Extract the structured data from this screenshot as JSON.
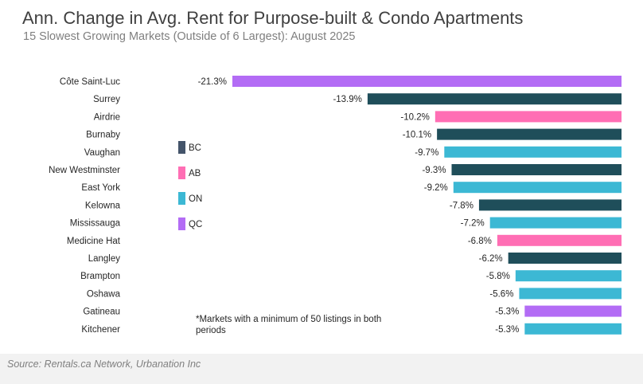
{
  "header": {
    "title": "Ann. Change in Avg. Rent for Purpose-built & Condo Apartments",
    "subtitle": "15 Slowest Growing Markets (Outside of 6 Largest): August 2025"
  },
  "footnote": "*Markets with a minimum of 50 listings in both periods",
  "source": "Source: Rentals.ca Network, Urbanation Inc",
  "colors": {
    "BC": "#1f4e5a",
    "AB": "#ff6eb4",
    "ON": "#3cb8d4",
    "QC": "#b36cf5",
    "legend_BC": "#44546a"
  },
  "chart_data": {
    "type": "bar",
    "orientation": "horizontal",
    "title": "Ann. Change in Avg. Rent for Purpose-built & Condo Apartments",
    "subtitle": "15 Slowest Growing Markets (Outside of 6 Largest): August 2025",
    "categories": [
      "Côte Saint-Luc",
      "Surrey",
      "Airdrie",
      "Burnaby",
      "Vaughan",
      "New Westminster",
      "East York",
      "Kelowna",
      "Mississauga",
      "Medicine Hat",
      "Langley",
      "Brampton",
      "Oshawa",
      "Gatineau",
      "Kitchener"
    ],
    "values": [
      -21.3,
      -13.9,
      -10.2,
      -10.1,
      -9.7,
      -9.3,
      -9.2,
      -7.8,
      -7.2,
      -6.8,
      -6.2,
      -5.8,
      -5.6,
      -5.3,
      -5.3
    ],
    "value_labels": [
      "-21.3%",
      "-13.9%",
      "-10.2%",
      "-10.1%",
      "-9.7%",
      "-9.3%",
      "-9.2%",
      "-7.8%",
      "-7.2%",
      "-6.8%",
      "-6.2%",
      "-5.8%",
      "-5.6%",
      "-5.3%",
      "-5.3%"
    ],
    "regions": [
      "QC",
      "BC",
      "AB",
      "BC",
      "ON",
      "BC",
      "ON",
      "BC",
      "ON",
      "AB",
      "BC",
      "ON",
      "ON",
      "QC",
      "ON"
    ],
    "legend": [
      "BC",
      "AB",
      "ON",
      "QC"
    ],
    "legend_placement": "middle-left",
    "xlim": [
      -21.3,
      0
    ],
    "grid": false
  }
}
